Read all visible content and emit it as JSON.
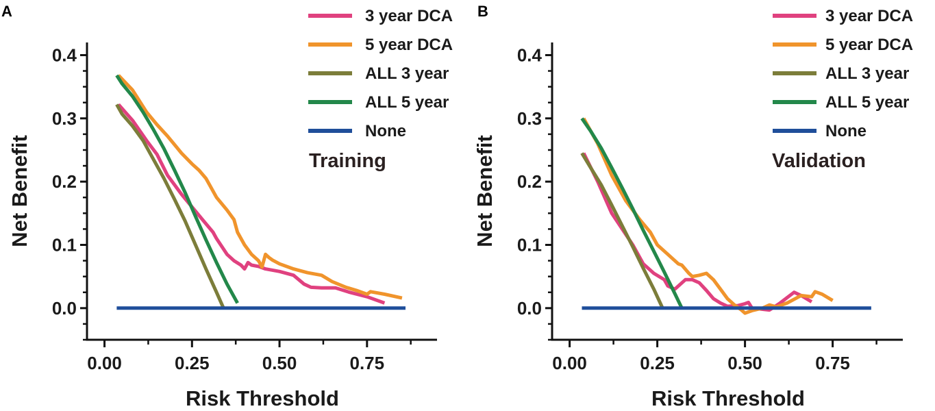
{
  "colors": {
    "dca3": "#e0417f",
    "dca5": "#f0942c",
    "all3": "#7c7d3a",
    "all5": "#23884a",
    "none": "#1f4e9a",
    "axis": "#111111"
  },
  "chart_data": [
    {
      "panel_label": "A",
      "type": "line",
      "title": "Training",
      "xlabel": "Risk Threshold",
      "ylabel": "Net Benefit",
      "xlim": [
        -0.05,
        0.95
      ],
      "ylim": [
        -0.05,
        0.42
      ],
      "xticks": [
        0.0,
        0.25,
        0.5,
        0.75
      ],
      "xtick_labels": [
        "0.00",
        "0.25",
        "0.50",
        "0.75"
      ],
      "yticks": [
        0.0,
        0.1,
        0.2,
        0.3,
        0.4
      ],
      "ytick_labels": [
        "0.0",
        "0.1",
        "0.2",
        "0.3",
        "0.4"
      ],
      "legend": [
        "3 year DCA",
        "5 year DCA",
        "ALL 3 year",
        "ALL 5 year",
        "None"
      ],
      "series": [
        {
          "name": "3 year DCA",
          "color_key": "dca3",
          "points": [
            [
              0.04,
              0.322
            ],
            [
              0.08,
              0.297
            ],
            [
              0.12,
              0.265
            ],
            [
              0.15,
              0.243
            ],
            [
              0.18,
              0.21
            ],
            [
              0.22,
              0.18
            ],
            [
              0.25,
              0.16
            ],
            [
              0.28,
              0.14
            ],
            [
              0.31,
              0.12
            ],
            [
              0.32,
              0.11
            ],
            [
              0.35,
              0.085
            ],
            [
              0.37,
              0.075
            ],
            [
              0.39,
              0.068
            ],
            [
              0.4,
              0.062
            ],
            [
              0.41,
              0.072
            ],
            [
              0.42,
              0.068
            ],
            [
              0.44,
              0.066
            ],
            [
              0.46,
              0.062
            ],
            [
              0.5,
              0.058
            ],
            [
              0.54,
              0.052
            ],
            [
              0.57,
              0.038
            ],
            [
              0.59,
              0.033
            ],
            [
              0.62,
              0.032
            ],
            [
              0.66,
              0.032
            ],
            [
              0.7,
              0.025
            ],
            [
              0.75,
              0.018
            ],
            [
              0.8,
              0.008
            ]
          ]
        },
        {
          "name": "5 year DCA",
          "color_key": "dca5",
          "points": [
            [
              0.04,
              0.368
            ],
            [
              0.08,
              0.345
            ],
            [
              0.12,
              0.31
            ],
            [
              0.15,
              0.29
            ],
            [
              0.18,
              0.272
            ],
            [
              0.22,
              0.245
            ],
            [
              0.25,
              0.228
            ],
            [
              0.27,
              0.218
            ],
            [
              0.29,
              0.205
            ],
            [
              0.3,
              0.195
            ],
            [
              0.32,
              0.175
            ],
            [
              0.35,
              0.155
            ],
            [
              0.37,
              0.14
            ],
            [
              0.38,
              0.12
            ],
            [
              0.4,
              0.1
            ],
            [
              0.42,
              0.085
            ],
            [
              0.44,
              0.075
            ],
            [
              0.45,
              0.065
            ],
            [
              0.46,
              0.085
            ],
            [
              0.47,
              0.08
            ],
            [
              0.48,
              0.076
            ],
            [
              0.5,
              0.07
            ],
            [
              0.54,
              0.062
            ],
            [
              0.58,
              0.056
            ],
            [
              0.62,
              0.052
            ],
            [
              0.65,
              0.042
            ],
            [
              0.69,
              0.033
            ],
            [
              0.72,
              0.028
            ],
            [
              0.75,
              0.022
            ],
            [
              0.76,
              0.026
            ],
            [
              0.8,
              0.022
            ],
            [
              0.85,
              0.016
            ]
          ]
        },
        {
          "name": "ALL 3 year",
          "color_key": "all3",
          "points": [
            [
              0.035,
              0.322
            ],
            [
              0.05,
              0.307
            ],
            [
              0.08,
              0.288
            ],
            [
              0.11,
              0.265
            ],
            [
              0.14,
              0.235
            ],
            [
              0.17,
              0.205
            ],
            [
              0.2,
              0.172
            ],
            [
              0.23,
              0.138
            ],
            [
              0.26,
              0.1
            ],
            [
              0.29,
              0.062
            ],
            [
              0.32,
              0.025
            ],
            [
              0.34,
              0.0
            ]
          ]
        },
        {
          "name": "ALL 5 year",
          "color_key": "all5",
          "points": [
            [
              0.035,
              0.368
            ],
            [
              0.05,
              0.355
            ],
            [
              0.08,
              0.335
            ],
            [
              0.11,
              0.31
            ],
            [
              0.14,
              0.282
            ],
            [
              0.17,
              0.252
            ],
            [
              0.2,
              0.218
            ],
            [
              0.23,
              0.183
            ],
            [
              0.26,
              0.145
            ],
            [
              0.29,
              0.108
            ],
            [
              0.32,
              0.072
            ],
            [
              0.35,
              0.038
            ],
            [
              0.38,
              0.008
            ]
          ]
        },
        {
          "name": "None",
          "color_key": "none",
          "points": [
            [
              0.035,
              0.0
            ],
            [
              0.86,
              0.0
            ]
          ]
        }
      ]
    },
    {
      "panel_label": "B",
      "type": "line",
      "title": "Validation",
      "xlabel": "Risk Threshold",
      "ylabel": "Net Benefit",
      "xlim": [
        -0.05,
        0.95
      ],
      "ylim": [
        -0.05,
        0.42
      ],
      "xticks": [
        0.0,
        0.25,
        0.5,
        0.75
      ],
      "xtick_labels": [
        "0.00",
        "0.25",
        "0.50",
        "0.75"
      ],
      "yticks": [
        0.0,
        0.1,
        0.2,
        0.3,
        0.4
      ],
      "ytick_labels": [
        "0.0",
        "0.1",
        "0.2",
        "0.3",
        "0.4"
      ],
      "legend": [
        "3 year DCA",
        "5 year DCA",
        "ALL 3 year",
        "ALL 5 year",
        "None"
      ],
      "series": [
        {
          "name": "3 year DCA",
          "color_key": "dca3",
          "points": [
            [
              0.04,
              0.245
            ],
            [
              0.08,
              0.2
            ],
            [
              0.12,
              0.15
            ],
            [
              0.15,
              0.125
            ],
            [
              0.18,
              0.1
            ],
            [
              0.21,
              0.07
            ],
            [
              0.24,
              0.055
            ],
            [
              0.27,
              0.045
            ],
            [
              0.28,
              0.035
            ],
            [
              0.3,
              0.03
            ],
            [
              0.33,
              0.045
            ],
            [
              0.35,
              0.045
            ],
            [
              0.37,
              0.04
            ],
            [
              0.39,
              0.028
            ],
            [
              0.41,
              0.015
            ],
            [
              0.43,
              0.008
            ],
            [
              0.45,
              0.003
            ],
            [
              0.48,
              0.004
            ],
            [
              0.5,
              0.007
            ],
            [
              0.51,
              0.009
            ],
            [
              0.52,
              0.0
            ],
            [
              0.57,
              -0.003
            ],
            [
              0.6,
              0.008
            ],
            [
              0.64,
              0.025
            ],
            [
              0.66,
              0.02
            ],
            [
              0.69,
              0.01
            ]
          ]
        },
        {
          "name": "5 year DCA",
          "color_key": "dca5",
          "points": [
            [
              0.04,
              0.3
            ],
            [
              0.08,
              0.26
            ],
            [
              0.12,
              0.21
            ],
            [
              0.16,
              0.17
            ],
            [
              0.2,
              0.14
            ],
            [
              0.23,
              0.12
            ],
            [
              0.25,
              0.1
            ],
            [
              0.28,
              0.085
            ],
            [
              0.31,
              0.07
            ],
            [
              0.32,
              0.068
            ],
            [
              0.34,
              0.055
            ],
            [
              0.35,
              0.05
            ],
            [
              0.37,
              0.052
            ],
            [
              0.39,
              0.055
            ],
            [
              0.41,
              0.045
            ],
            [
              0.43,
              0.03
            ],
            [
              0.45,
              0.015
            ],
            [
              0.47,
              0.005
            ],
            [
              0.49,
              -0.003
            ],
            [
              0.5,
              -0.008
            ],
            [
              0.52,
              -0.004
            ],
            [
              0.55,
              0.0
            ],
            [
              0.57,
              0.005
            ],
            [
              0.59,
              0.002
            ],
            [
              0.62,
              0.008
            ],
            [
              0.66,
              0.02
            ],
            [
              0.69,
              0.018
            ],
            [
              0.7,
              0.026
            ],
            [
              0.72,
              0.022
            ],
            [
              0.75,
              0.012
            ]
          ]
        },
        {
          "name": "ALL 3 year",
          "color_key": "all3",
          "points": [
            [
              0.035,
              0.245
            ],
            [
              0.06,
              0.222
            ],
            [
              0.09,
              0.195
            ],
            [
              0.12,
              0.163
            ],
            [
              0.15,
              0.13
            ],
            [
              0.18,
              0.097
            ],
            [
              0.21,
              0.063
            ],
            [
              0.24,
              0.03
            ],
            [
              0.265,
              0.0
            ]
          ]
        },
        {
          "name": "ALL 5 year",
          "color_key": "all5",
          "points": [
            [
              0.035,
              0.3
            ],
            [
              0.06,
              0.28
            ],
            [
              0.09,
              0.253
            ],
            [
              0.12,
              0.222
            ],
            [
              0.15,
              0.19
            ],
            [
              0.18,
              0.157
            ],
            [
              0.21,
              0.123
            ],
            [
              0.24,
              0.09
            ],
            [
              0.27,
              0.057
            ],
            [
              0.3,
              0.023
            ],
            [
              0.32,
              0.0
            ]
          ]
        },
        {
          "name": "None",
          "color_key": "none",
          "points": [
            [
              0.035,
              0.0
            ],
            [
              0.86,
              0.0
            ]
          ]
        }
      ]
    }
  ]
}
